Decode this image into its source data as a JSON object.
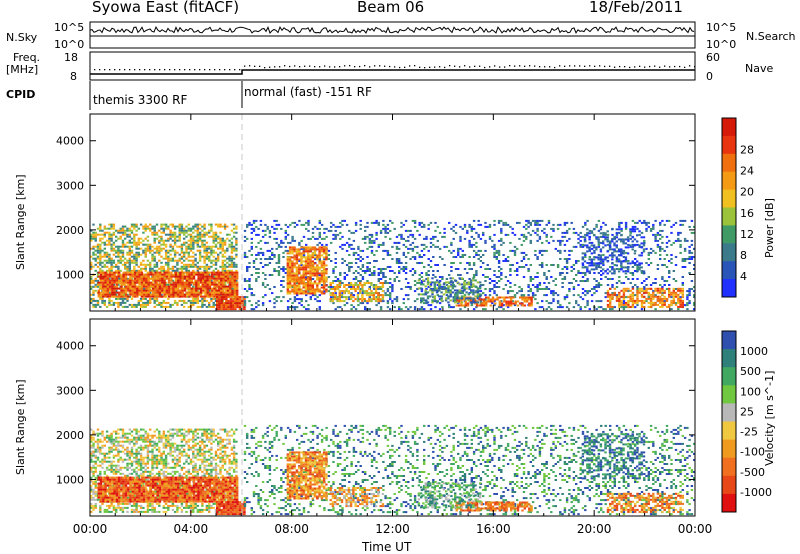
{
  "header": {
    "station": "Syowa East (fitACF)",
    "beam": "Beam 06",
    "date": "18/Feb/2011"
  },
  "top_panel": {
    "left_label": "N.Sky",
    "left_ticks": [
      "10^5",
      "10^0"
    ],
    "right_ticks": [
      "10^5",
      "10^0"
    ],
    "right_label": "N.Search"
  },
  "freq_panel": {
    "left_label_1": "Freq.",
    "left_label_2": "[MHz]",
    "left_ticks": [
      "18",
      "8"
    ],
    "right_ticks": [
      "60",
      "0"
    ],
    "right_label": "Nave"
  },
  "cpid_panel": {
    "label": "CPID",
    "segment_1": "themis 3300 RF",
    "segment_2": "normal (fast) -151 RF"
  },
  "chart_data": [
    {
      "type": "heatmap",
      "ylabel": "Slant Range [km]",
      "yticks": [
        1000,
        2000,
        3000,
        4000
      ],
      "ylim": [
        180,
        4600
      ],
      "xlim_hours": [
        0,
        24
      ],
      "colorbar": {
        "label": "Power [dB]",
        "ticks": [
          "4",
          "8",
          "12",
          "16",
          "20",
          "24",
          "28"
        ],
        "colors": [
          "#1f30ff",
          "#2a55b8",
          "#3a7a8a",
          "#3f9a66",
          "#9ac23a",
          "#f0c020",
          "#f59a15",
          "#f07010",
          "#e83510",
          "#d61a0a"
        ]
      }
    },
    {
      "type": "heatmap",
      "ylabel": "Slant Range [km]",
      "yticks": [
        1000,
        2000,
        3000,
        4000
      ],
      "ylim": [
        180,
        4600
      ],
      "xlim_hours": [
        0,
        24
      ],
      "colorbar": {
        "label": "Velocity [m s^-1]",
        "ticks": [
          "1000",
          "500",
          "100",
          "25",
          "-25",
          "-100",
          "-500",
          "-1000"
        ],
        "colors": [
          "#3050b0",
          "#2f7f7a",
          "#40a860",
          "#70c840",
          "#b8b8b8",
          "#f0c840",
          "#f09a20",
          "#f07020",
          "#e84818",
          "#e01010"
        ]
      }
    }
  ],
  "xaxis": {
    "label": "Time UT",
    "ticks": [
      "00:00",
      "04:00",
      "08:00",
      "12:00",
      "16:00",
      "20:00",
      "00:00"
    ]
  }
}
